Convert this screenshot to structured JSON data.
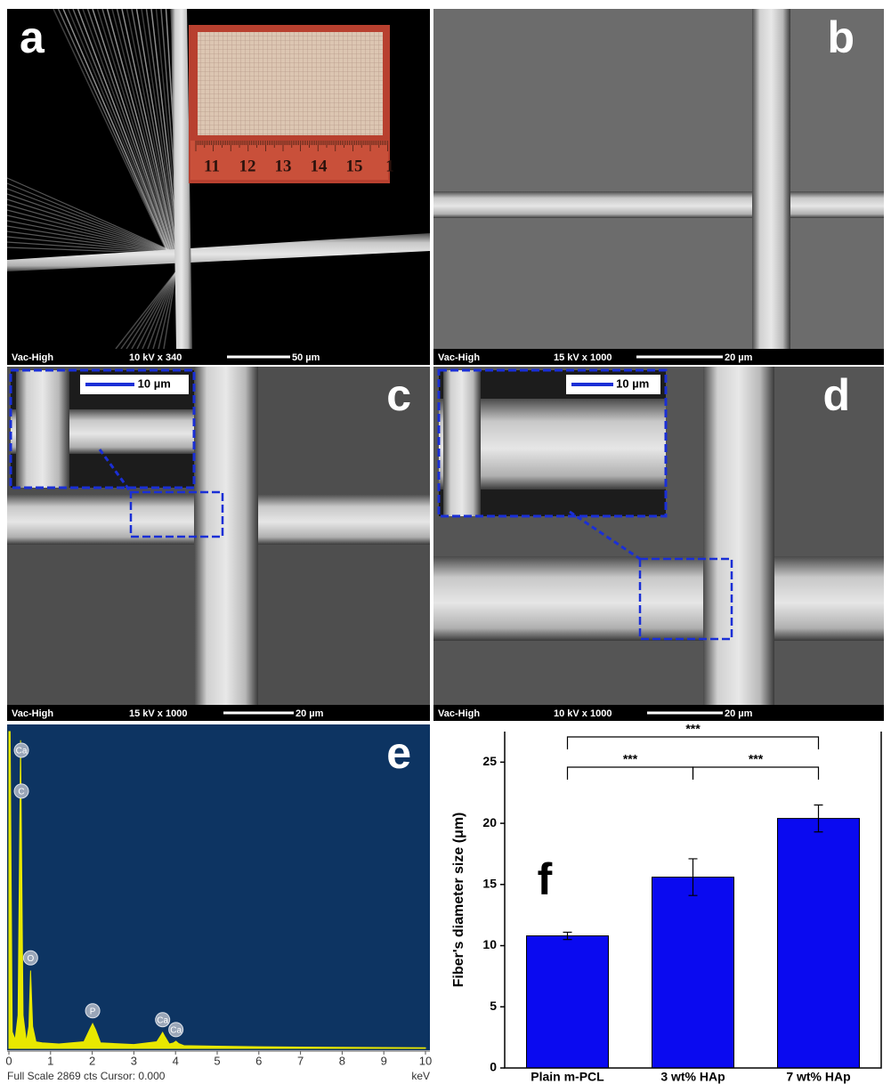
{
  "panels": [
    {
      "letter": "a",
      "info": [
        "Vac-High",
        "10 kV  x 340",
        "50 µm"
      ],
      "ruler": [
        "11",
        "12",
        "13",
        "14",
        "15",
        "1"
      ]
    },
    {
      "letter": "b",
      "info": [
        "Vac-High",
        "15 kV  x 1000",
        "20 µm"
      ]
    },
    {
      "letter": "c",
      "info": [
        "Vac-High",
        "15 kV  x 1000",
        "20 µm"
      ],
      "inset_scale": "10 µm"
    },
    {
      "letter": "d",
      "info": [
        "Vac-High",
        "10 kV  x 1000",
        "20 µm"
      ],
      "inset_scale": "10 µm"
    }
  ],
  "chart_data": [
    {
      "type": "spectrum",
      "panel_label": "e",
      "x_label": "keV",
      "footer": "Full Scale 2869 cts Cursor: 0.000",
      "color": "#e8e800",
      "x": [
        0,
        0.03,
        0.08,
        0.15,
        0.22,
        0.28,
        0.34,
        0.42,
        0.48,
        0.52,
        0.57,
        0.65,
        0.8,
        1.2,
        1.8,
        1.95,
        2.01,
        2.08,
        2.2,
        3.0,
        3.55,
        3.65,
        3.69,
        3.74,
        3.85,
        3.95,
        4.01,
        4.07,
        4.2,
        5,
        6,
        7,
        8,
        9,
        10
      ],
      "values": [
        2869,
        2869,
        150,
        80,
        300,
        2790,
        300,
        60,
        200,
        705,
        200,
        60,
        50,
        40,
        60,
        180,
        225,
        170,
        50,
        35,
        60,
        120,
        145,
        110,
        40,
        50,
        65,
        45,
        25,
        20,
        15,
        12,
        10,
        8,
        6
      ],
      "xlim": [
        0,
        10
      ],
      "xticks": [
        0,
        1,
        2,
        3,
        4,
        5,
        6,
        7,
        8,
        9,
        10
      ],
      "ylim": [
        0,
        2869
      ],
      "annotations": [
        {
          "text": "Ca",
          "x": 0.3,
          "y": 2700
        },
        {
          "text": "C",
          "x": 0.3,
          "y": 2330
        },
        {
          "text": "O",
          "x": 0.52,
          "y": 820
        },
        {
          "text": "P",
          "x": 2.01,
          "y": 340
        },
        {
          "text": "Ca",
          "x": 3.69,
          "y": 260
        },
        {
          "text": "Ca",
          "x": 4.01,
          "y": 170
        }
      ]
    },
    {
      "type": "bar",
      "panel_label": "f",
      "y_label": "Fiber's diameter size (μm)",
      "color": "#0a0af0",
      "categories": [
        "Plain m-PCL",
        "3 wt% HAp",
        "7 wt% HAp"
      ],
      "values": [
        10.8,
        15.6,
        20.4
      ],
      "errors": [
        0.3,
        1.5,
        1.1
      ],
      "ylim": [
        0,
        27.5
      ],
      "yticks": [
        0,
        5,
        10,
        15,
        20,
        25
      ],
      "significance": [
        "***",
        "***",
        "***"
      ]
    }
  ]
}
